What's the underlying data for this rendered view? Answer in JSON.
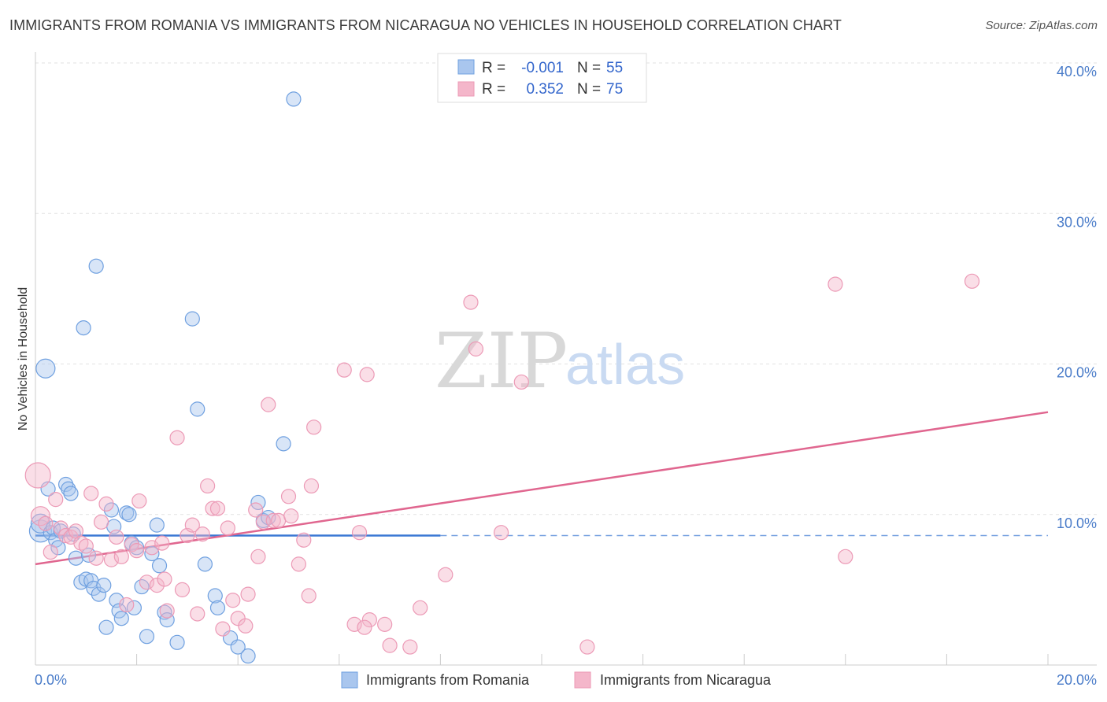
{
  "title": "IMMIGRANTS FROM ROMANIA VS IMMIGRANTS FROM NICARAGUA NO VEHICLES IN HOUSEHOLD CORRELATION CHART",
  "source": "Source: ZipAtlas.com",
  "watermark": {
    "zip": "ZIP",
    "atlas": "atlas"
  },
  "legend": {
    "rows": [
      {
        "r_label": "R =",
        "r_value": "-0.001",
        "n_label": "N =",
        "n_value": "55",
        "color": "#a9c6ee"
      },
      {
        "r_label": "R =",
        "r_value": "0.352",
        "n_label": "N =",
        "n_value": "75",
        "color": "#f4b6ca"
      }
    ]
  },
  "bottom_legend": [
    {
      "label": "Immigrants from Romania",
      "color": "#a9c6ee"
    },
    {
      "label": "Immigrants from Nicaragua",
      "color": "#f4b6ca"
    }
  ],
  "chart_data": {
    "type": "scatter",
    "xlabel": "",
    "ylabel": "No Vehicles in Household",
    "xlim": [
      0,
      20
    ],
    "ylim": [
      0,
      40
    ],
    "x_ticks": [
      "0.0%",
      "20.0%"
    ],
    "y_ticks": [
      {
        "value": 10,
        "label": "10.0%"
      },
      {
        "value": 20,
        "label": "20.0%"
      },
      {
        "value": 30,
        "label": "30.0%"
      },
      {
        "value": 40,
        "label": "40.0%"
      }
    ],
    "grid": true,
    "series": [
      {
        "name": "Immigrants from Romania",
        "color": "#6fa0e0",
        "fill": "#a9c6ee",
        "trend": {
          "x0": 0,
          "y0": 8.6,
          "x1": 8.0,
          "y1": 8.6,
          "dashed_to_x": 20,
          "color": "#3b78d4"
        },
        "points": [
          [
            0.1,
            8.9,
            14
          ],
          [
            0.1,
            9.4,
            12
          ],
          [
            0.2,
            19.7,
            12
          ],
          [
            0.25,
            11.7,
            9
          ],
          [
            0.3,
            8.8,
            9
          ],
          [
            0.35,
            9.1,
            9
          ],
          [
            0.4,
            8.3,
            9
          ],
          [
            0.45,
            7.8,
            9
          ],
          [
            0.5,
            8.9,
            9
          ],
          [
            0.6,
            12.0,
            9
          ],
          [
            0.65,
            11.7,
            9
          ],
          [
            0.7,
            11.4,
            9
          ],
          [
            0.75,
            8.7,
            9
          ],
          [
            0.8,
            7.1,
            9
          ],
          [
            0.9,
            5.5,
            9
          ],
          [
            0.95,
            22.4,
            9
          ],
          [
            1.0,
            5.7,
            9
          ],
          [
            1.05,
            7.3,
            9
          ],
          [
            1.1,
            5.6,
            9
          ],
          [
            1.15,
            5.1,
            9
          ],
          [
            1.2,
            26.5,
            9
          ],
          [
            1.25,
            4.7,
            9
          ],
          [
            1.35,
            5.3,
            9
          ],
          [
            1.4,
            2.5,
            9
          ],
          [
            1.5,
            10.3,
            9
          ],
          [
            1.55,
            9.2,
            9
          ],
          [
            1.6,
            4.3,
            9
          ],
          [
            1.65,
            3.6,
            9
          ],
          [
            1.7,
            3.1,
            9
          ],
          [
            1.8,
            10.1,
            9
          ],
          [
            1.85,
            10.0,
            9
          ],
          [
            1.9,
            8.1,
            9
          ],
          [
            1.95,
            3.8,
            9
          ],
          [
            2.0,
            7.8,
            9
          ],
          [
            2.1,
            5.2,
            9
          ],
          [
            2.2,
            1.9,
            9
          ],
          [
            2.3,
            7.4,
            9
          ],
          [
            2.4,
            9.3,
            9
          ],
          [
            2.45,
            6.6,
            9
          ],
          [
            2.55,
            3.5,
            9
          ],
          [
            2.6,
            3.0,
            9
          ],
          [
            2.8,
            1.5,
            9
          ],
          [
            3.1,
            23.0,
            9
          ],
          [
            3.2,
            17.0,
            9
          ],
          [
            3.35,
            6.7,
            9
          ],
          [
            3.55,
            4.6,
            9
          ],
          [
            3.6,
            3.8,
            9
          ],
          [
            3.85,
            1.8,
            9
          ],
          [
            4.0,
            1.2,
            9
          ],
          [
            4.2,
            0.6,
            9
          ],
          [
            4.4,
            10.8,
            9
          ],
          [
            4.5,
            9.6,
            9
          ],
          [
            4.6,
            9.8,
            9
          ],
          [
            4.9,
            14.7,
            9
          ],
          [
            5.1,
            37.6,
            9
          ]
        ]
      },
      {
        "name": "Immigrants from Nicaragua",
        "color": "#ec9ab6",
        "fill": "#f4b6ca",
        "trend": {
          "x0": 0,
          "y0": 6.7,
          "x1": 20,
          "y1": 16.8,
          "color": "#e0668f"
        },
        "points": [
          [
            0.05,
            12.6,
            16
          ],
          [
            0.1,
            9.9,
            12
          ],
          [
            0.2,
            9.4,
            9
          ],
          [
            0.3,
            7.5,
            9
          ],
          [
            0.4,
            11.0,
            9
          ],
          [
            0.5,
            9.1,
            9
          ],
          [
            0.6,
            8.6,
            9
          ],
          [
            0.7,
            8.5,
            9
          ],
          [
            0.8,
            8.9,
            9
          ],
          [
            0.9,
            8.1,
            9
          ],
          [
            1.0,
            7.9,
            9
          ],
          [
            1.1,
            11.4,
            9
          ],
          [
            1.2,
            7.1,
            9
          ],
          [
            1.3,
            9.5,
            9
          ],
          [
            1.4,
            10.7,
            9
          ],
          [
            1.5,
            7.0,
            9
          ],
          [
            1.6,
            8.5,
            9
          ],
          [
            1.7,
            7.2,
            9
          ],
          [
            1.8,
            4.0,
            9
          ],
          [
            1.9,
            8.0,
            9
          ],
          [
            2.0,
            7.6,
            9
          ],
          [
            2.05,
            10.9,
            9
          ],
          [
            2.2,
            5.5,
            9
          ],
          [
            2.3,
            7.8,
            9
          ],
          [
            2.4,
            5.3,
            9
          ],
          [
            2.5,
            8.1,
            9
          ],
          [
            2.55,
            5.7,
            9
          ],
          [
            2.6,
            3.6,
            9
          ],
          [
            2.8,
            15.1,
            9
          ],
          [
            2.9,
            5.0,
            9
          ],
          [
            3.0,
            8.6,
            9
          ],
          [
            3.1,
            9.3,
            9
          ],
          [
            3.2,
            3.4,
            9
          ],
          [
            3.3,
            8.7,
            9
          ],
          [
            3.4,
            11.9,
            9
          ],
          [
            3.5,
            10.4,
            9
          ],
          [
            3.6,
            10.4,
            9
          ],
          [
            3.7,
            2.4,
            9
          ],
          [
            3.8,
            9.1,
            9
          ],
          [
            3.9,
            4.3,
            9
          ],
          [
            4.0,
            3.1,
            9
          ],
          [
            4.2,
            4.7,
            9
          ],
          [
            4.35,
            10.3,
            9
          ],
          [
            4.4,
            7.2,
            9
          ],
          [
            4.5,
            9.5,
            9
          ],
          [
            4.6,
            17.3,
            9
          ],
          [
            4.7,
            9.6,
            9
          ],
          [
            4.8,
            9.6,
            9
          ],
          [
            5.0,
            11.2,
            9
          ],
          [
            5.05,
            9.9,
            9
          ],
          [
            5.3,
            8.3,
            9
          ],
          [
            5.4,
            4.6,
            9
          ],
          [
            5.5,
            15.8,
            9
          ],
          [
            5.45,
            11.9,
            9
          ],
          [
            5.2,
            6.7,
            9
          ],
          [
            6.1,
            19.6,
            9
          ],
          [
            6.3,
            2.7,
            9
          ],
          [
            6.4,
            8.8,
            9
          ],
          [
            6.55,
            19.3,
            9
          ],
          [
            6.6,
            3.0,
            9
          ],
          [
            6.5,
            2.5,
            9
          ],
          [
            6.9,
            2.7,
            9
          ],
          [
            7.0,
            1.3,
            9
          ],
          [
            7.4,
            1.2,
            9
          ],
          [
            7.6,
            3.8,
            9
          ],
          [
            8.1,
            6.0,
            9
          ],
          [
            8.6,
            24.1,
            9
          ],
          [
            8.7,
            21.0,
            9
          ],
          [
            9.2,
            8.8,
            9
          ],
          [
            9.6,
            18.8,
            9
          ],
          [
            10.9,
            1.2,
            9
          ],
          [
            15.8,
            25.3,
            9
          ],
          [
            16.0,
            7.2,
            9
          ],
          [
            18.5,
            25.5,
            9
          ],
          [
            4.15,
            2.6,
            9
          ]
        ]
      }
    ]
  }
}
